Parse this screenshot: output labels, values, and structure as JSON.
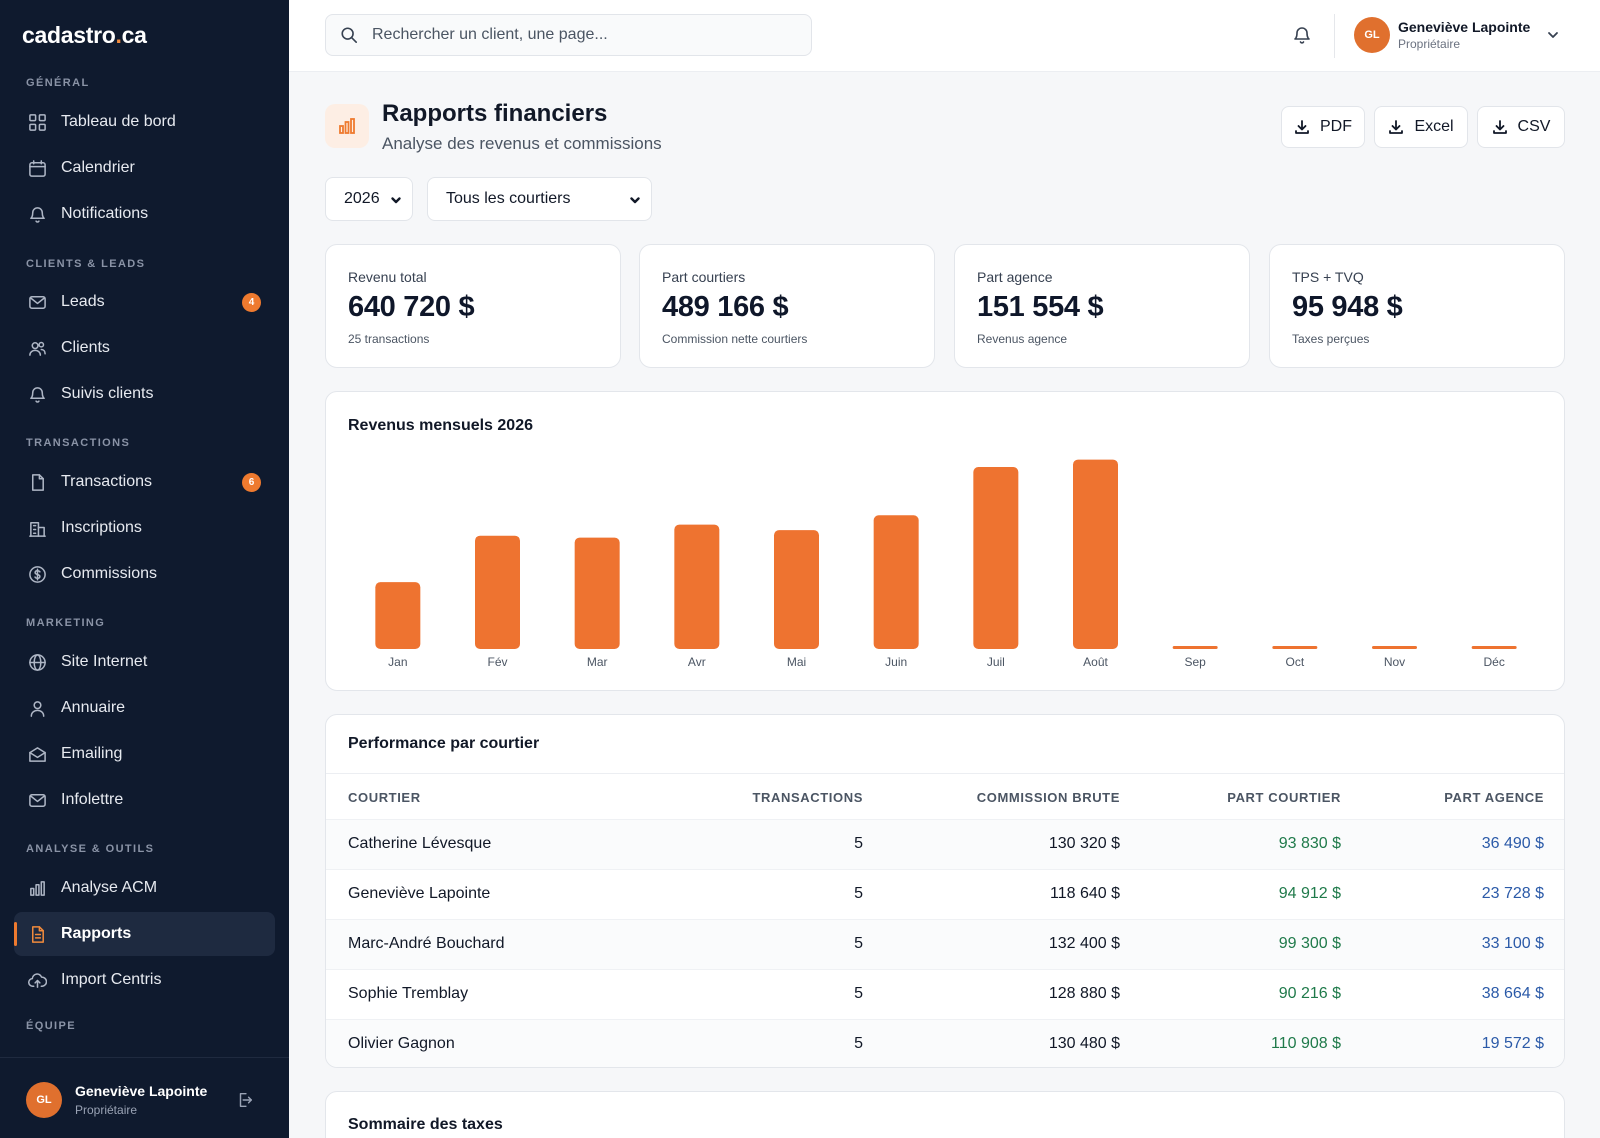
{
  "app": {
    "logo_main": "cadastro",
    "logo_dot": ".",
    "logo_tld": "ca"
  },
  "sidebar": {
    "sections": [
      {
        "label": "GÉNÉRAL"
      },
      {
        "label": "CLIENTS & LEADS"
      },
      {
        "label": "TRANSACTIONS"
      },
      {
        "label": "MARKETING"
      },
      {
        "label": "ANALYSE & OUTILS"
      },
      {
        "label": "ÉQUIPE"
      }
    ],
    "items": [
      {
        "label": "Tableau de bord",
        "icon": "grid-icon"
      },
      {
        "label": "Calendrier",
        "icon": "calendar-icon"
      },
      {
        "label": "Notifications",
        "icon": "bell-icon"
      },
      {
        "label": "Leads",
        "icon": "mail-icon",
        "badge": "4"
      },
      {
        "label": "Clients",
        "icon": "users-icon"
      },
      {
        "label": "Suivis clients",
        "icon": "bell-icon"
      },
      {
        "label": "Transactions",
        "icon": "file-icon",
        "badge": "6"
      },
      {
        "label": "Inscriptions",
        "icon": "building-icon"
      },
      {
        "label": "Commissions",
        "icon": "dollar-icon"
      },
      {
        "label": "Site Internet",
        "icon": "globe-icon"
      },
      {
        "label": "Annuaire",
        "icon": "user-icon"
      },
      {
        "label": "Emailing",
        "icon": "mail-open-icon"
      },
      {
        "label": "Infolettre",
        "icon": "mail-icon"
      },
      {
        "label": "Analyse ACM",
        "icon": "bar-chart-icon"
      },
      {
        "label": "Rapports",
        "icon": "report-icon",
        "active": true
      },
      {
        "label": "Import Centris",
        "icon": "cloud-upload-icon"
      }
    ],
    "user": {
      "initials": "GL",
      "name": "Geneviève Lapointe",
      "role": "Propriétaire"
    }
  },
  "topbar": {
    "search_placeholder": "Rechercher un client, une page...",
    "user": {
      "initials": "GL",
      "name": "Geneviève Lapointe",
      "role": "Propriétaire"
    }
  },
  "header": {
    "title": "Rapports financiers",
    "subtitle": "Analyse des revenus et commissions",
    "exports": [
      "PDF",
      "Excel",
      "CSV"
    ]
  },
  "filters": {
    "year": "2026",
    "broker": "Tous les courtiers"
  },
  "kpis": [
    {
      "label": "Revenu total",
      "value": "640 720 $",
      "sub": "25 transactions"
    },
    {
      "label": "Part courtiers",
      "value": "489 166 $",
      "sub": "Commission nette courtiers"
    },
    {
      "label": "Part agence",
      "value": "151 554 $",
      "sub": "Revenus agence"
    },
    {
      "label": "TPS + TVQ",
      "value": "95 948 $",
      "sub": "Taxes perçues"
    }
  ],
  "chart_data": {
    "type": "bar",
    "title": "Revenus mensuels 2026",
    "categories": [
      "Jan",
      "Fév",
      "Mar",
      "Avr",
      "Mai",
      "Juin",
      "Juil",
      "Août",
      "Sep",
      "Oct",
      "Nov",
      "Déc"
    ],
    "values": [
      36,
      61,
      60,
      67,
      64,
      72,
      98,
      102,
      1,
      1,
      1,
      1
    ],
    "ylim": [
      0,
      105
    ],
    "grid": false,
    "color": "#ee7330"
  },
  "table": {
    "title": "Performance par courtier",
    "columns": [
      "COURTIER",
      "TRANSACTIONS",
      "COMMISSION BRUTE",
      "PART COURTIER",
      "PART AGENCE"
    ],
    "rows": [
      [
        "Catherine Lévesque",
        "5",
        "130 320 $",
        "93 830 $",
        "36 490 $"
      ],
      [
        "Geneviève Lapointe",
        "5",
        "118 640 $",
        "94 912 $",
        "23 728 $"
      ],
      [
        "Marc-André Bouchard",
        "5",
        "132 400 $",
        "99 300 $",
        "33 100 $"
      ],
      [
        "Sophie Tremblay",
        "5",
        "128 880 $",
        "90 216 $",
        "38 664 $"
      ],
      [
        "Olivier Gagnon",
        "5",
        "130 480 $",
        "110 908 $",
        "19 572 $"
      ]
    ]
  },
  "tax_summary": {
    "title": "Sommaire des taxes"
  }
}
